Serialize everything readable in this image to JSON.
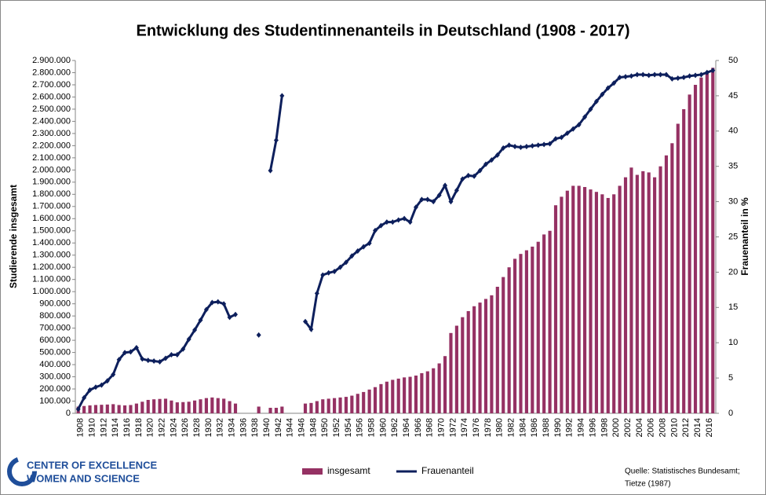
{
  "chart_data": {
    "type": "bar_line",
    "title": "Entwicklung des Studentinnenanteils in Deutschland (1908 - 2017)",
    "ylabel": "Studierende insgesamt",
    "y2label": "Frauenanteil in %",
    "grid": false,
    "legend": "bottom",
    "categories": [
      "1908",
      null,
      "1910",
      null,
      "1912",
      null,
      "1914",
      null,
      "1916",
      null,
      "1918",
      null,
      "1920",
      null,
      "1922",
      null,
      "1924",
      null,
      "1926",
      null,
      "1928",
      null,
      "1930",
      null,
      "1932",
      null,
      "1934",
      null,
      "1936",
      null,
      "1938",
      null,
      "1940",
      null,
      "1942",
      null,
      "1944",
      null,
      "1946",
      null,
      "1948",
      null,
      "1950",
      null,
      "1952",
      null,
      "1954",
      null,
      "1956",
      null,
      "1958",
      null,
      "1960",
      null,
      "1962",
      null,
      "1964",
      null,
      "1966",
      null,
      "1968",
      null,
      "1970",
      null,
      "1972",
      null,
      "1974",
      null,
      "1976",
      null,
      "1978",
      null,
      "1980",
      null,
      "1982",
      null,
      "1984",
      null,
      "1986",
      null,
      "1988",
      null,
      "1990",
      null,
      "1992",
      null,
      "1994",
      null,
      "1996",
      null,
      "1998",
      null,
      "2000",
      null,
      "2002",
      null,
      "2004",
      null,
      "2006",
      null,
      "2008",
      null,
      "2010",
      null,
      "2012",
      null,
      "2014",
      null,
      "2016",
      null
    ],
    "series": [
      {
        "name": "insgesamt",
        "type": "bar",
        "color": "#953163",
        "values": [
          55000,
          60000,
          65000,
          68000,
          70000,
          72000,
          75000,
          68000,
          65000,
          68000,
          80000,
          95000,
          110000,
          115000,
          118000,
          120000,
          105000,
          90000,
          92000,
          95000,
          105000,
          115000,
          125000,
          130000,
          125000,
          120000,
          100000,
          80000,
          null,
          null,
          null,
          55000,
          null,
          45000,
          45000,
          55000,
          null,
          null,
          null,
          80000,
          85000,
          100000,
          115000,
          120000,
          125000,
          130000,
          135000,
          145000,
          160000,
          175000,
          195000,
          215000,
          240000,
          260000,
          275000,
          285000,
          295000,
          300000,
          310000,
          330000,
          345000,
          370000,
          410000,
          470000,
          660000,
          720000,
          790000,
          840000,
          880000,
          910000,
          940000,
          970000,
          1040000,
          1120000,
          1200000,
          1270000,
          1310000,
          1340000,
          1370000,
          1410000,
          1470000,
          1500000,
          1710000,
          1780000,
          1830000,
          1870000,
          1870000,
          1860000,
          1840000,
          1820000,
          1800000,
          1770000,
          1800000,
          1870000,
          1940000,
          2020000,
          1960000,
          1990000,
          1980000,
          1940000,
          2030000,
          2120000,
          2220000,
          2380000,
          2500000,
          2620000,
          2700000,
          2760000,
          2810000,
          2840000
        ]
      },
      {
        "name": "Frauenanteil",
        "type": "line",
        "axis": "y2",
        "color": "#0d1f5c",
        "values": [
          0.6,
          2.2,
          3.3,
          3.7,
          4.0,
          4.6,
          5.5,
          7.6,
          8.6,
          8.7,
          9.3,
          7.7,
          7.5,
          7.4,
          7.3,
          7.8,
          8.3,
          8.3,
          9.1,
          10.5,
          11.8,
          13.2,
          14.7,
          15.7,
          15.8,
          15.5,
          13.6,
          14.0,
          null,
          null,
          null,
          11.1,
          null,
          34.4,
          38.7,
          45.0,
          null,
          null,
          null,
          13.0,
          11.9,
          17.0,
          19.6,
          19.9,
          20.1,
          20.7,
          21.4,
          22.3,
          23.0,
          23.6,
          24.1,
          25.9,
          26.6,
          27.1,
          27.1,
          27.4,
          27.6,
          27.1,
          29.2,
          30.3,
          30.3,
          30.0,
          30.9,
          32.3,
          30.0,
          31.6,
          33.2,
          33.7,
          33.6,
          34.4,
          35.3,
          35.9,
          36.6,
          37.6,
          38.0,
          37.8,
          37.7,
          37.8,
          37.9,
          38.0,
          38.1,
          38.2,
          38.9,
          39.1,
          39.7,
          40.3,
          40.9,
          42.0,
          43.1,
          44.2,
          45.2,
          46.1,
          46.8,
          47.6,
          47.7,
          47.8,
          48.0,
          48.0,
          47.9,
          48.0,
          48.0,
          48.0,
          47.4,
          47.5,
          47.6,
          47.8,
          47.9,
          48.0,
          48.3,
          48.6
        ]
      }
    ],
    "ylim": [
      0,
      2900000
    ],
    "yticks": [
      0,
      {
        "value": 100000,
        "label": "100.000"
      },
      {
        "value": 200000,
        "label": "200.000"
      },
      {
        "value": 300000,
        "label": "300.000"
      },
      {
        "value": 400000,
        "label": "400.000"
      },
      {
        "value": 500000,
        "label": "500.000"
      },
      {
        "value": 600000,
        "label": "600.000"
      },
      {
        "value": 700000,
        "label": "700.000"
      },
      {
        "value": 800000,
        "label": "800.000"
      },
      {
        "value": 900000,
        "label": "900.000"
      },
      {
        "value": 1000000,
        "label": "1.000.000"
      },
      {
        "value": 1100000,
        "label": "1.100.000"
      },
      {
        "value": 1200000,
        "label": "1.200.000"
      },
      {
        "value": 1300000,
        "label": "1.300.000"
      },
      {
        "value": 1400000,
        "label": "1.400.000"
      },
      {
        "value": 1500000,
        "label": "1.500.000"
      },
      {
        "value": 1600000,
        "label": "1.600.000"
      },
      {
        "value": 1700000,
        "label": "1.700.000"
      },
      {
        "value": 1800000,
        "label": "1.800.000"
      },
      {
        "value": 1900000,
        "label": "1.900.000"
      },
      {
        "value": 2000000,
        "label": "2.000.000"
      },
      {
        "value": 2100000,
        "label": "2.100.000"
      },
      {
        "value": 2200000,
        "label": "2.200.000"
      },
      {
        "value": 2300000,
        "label": "2.300.000"
      },
      {
        "value": 2400000,
        "label": "2.400.000"
      },
      {
        "value": 2500000,
        "label": "2.500.000"
      },
      {
        "value": 2600000,
        "label": "2.600.000"
      },
      {
        "value": 2700000,
        "label": "2.700.000"
      },
      {
        "value": 2800000,
        "label": "2.800.000"
      },
      {
        "value": 2900000,
        "label": "2.900.000"
      }
    ],
    "y2lim": [
      0,
      50
    ],
    "y2ticks": [
      0,
      5,
      10,
      15,
      20,
      25,
      30,
      35,
      40,
      45,
      50
    ]
  },
  "source": [
    "Quelle: Statistisches Bundesamt;",
    "Tietze (1987)"
  ],
  "logo": [
    "CENTER OF EXCELLENCE",
    "WOMEN AND SCIENCE"
  ]
}
